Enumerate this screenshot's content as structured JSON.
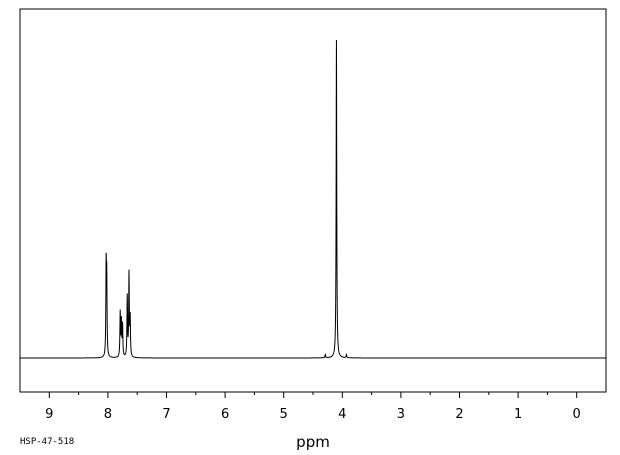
{
  "chart_data": {
    "type": "line",
    "title": "",
    "xlabel": "ppm",
    "ylabel": "",
    "xlim": [
      9.5,
      -0.5
    ],
    "x_reversed": true,
    "ticks": [
      {
        "value": 9,
        "label": "9"
      },
      {
        "value": 8,
        "label": "8"
      },
      {
        "value": 7,
        "label": "7"
      },
      {
        "value": 6,
        "label": "6"
      },
      {
        "value": 5,
        "label": "5"
      },
      {
        "value": 4,
        "label": "4"
      },
      {
        "value": 3,
        "label": "3"
      },
      {
        "value": 2,
        "label": "2"
      },
      {
        "value": 1,
        "label": "1"
      },
      {
        "value": 0,
        "label": "0"
      }
    ],
    "minor_ticks": [
      8.5,
      7.5,
      6.5,
      5.5,
      4.5,
      3.5,
      2.5,
      1.5,
      0.5
    ],
    "ylim": [
      -0.1,
      1.0
    ],
    "series": [
      {
        "color": "#000000",
        "peaks": [
          {
            "ppm": 8.03,
            "intensity": 0.27
          },
          {
            "ppm": 8.02,
            "intensity": 0.23
          },
          {
            "ppm": 7.79,
            "intensity": 0.14
          },
          {
            "ppm": 7.77,
            "intensity": 0.11
          },
          {
            "ppm": 7.75,
            "intensity": 0.1
          },
          {
            "ppm": 7.67,
            "intensity": 0.19
          },
          {
            "ppm": 7.64,
            "intensity": 0.26
          },
          {
            "ppm": 7.62,
            "intensity": 0.12
          },
          {
            "ppm": 4.29,
            "intensity": 0.01
          },
          {
            "ppm": 4.1,
            "intensity": 1.0
          },
          {
            "ppm": 3.93,
            "intensity": 0.01
          }
        ]
      }
    ]
  },
  "footer": {
    "code": "HSP-47-518"
  }
}
